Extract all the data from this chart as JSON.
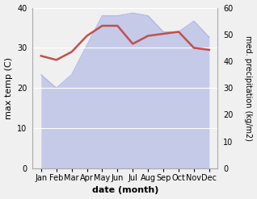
{
  "months": [
    "Jan",
    "Feb",
    "Mar",
    "Apr",
    "May",
    "Jun",
    "Jul",
    "Aug",
    "Sep",
    "Oct",
    "Nov",
    "Dec"
  ],
  "temp": [
    28.0,
    27.0,
    29.0,
    33.0,
    35.5,
    35.5,
    31.0,
    33.0,
    33.5,
    34.0,
    30.0,
    29.5
  ],
  "precip": [
    35,
    30,
    35,
    46,
    57,
    57,
    58,
    57,
    51,
    51,
    55,
    49
  ],
  "temp_color": "#c0504d",
  "precip_fill_color": "#c5cae9",
  "precip_line_color": "#9fa8da",
  "xlabel": "date (month)",
  "ylabel_left": "max temp (C)",
  "ylabel_right": "med. precipitation (kg/m2)",
  "ylim_left": [
    0,
    40
  ],
  "ylim_right": [
    0,
    60
  ],
  "yticks_left": [
    0,
    10,
    20,
    30,
    40
  ],
  "yticks_right": [
    0,
    10,
    20,
    30,
    40,
    50,
    60
  ],
  "bg_color": "#f0f0f0",
  "plot_bg_color": "#f0f0f0"
}
